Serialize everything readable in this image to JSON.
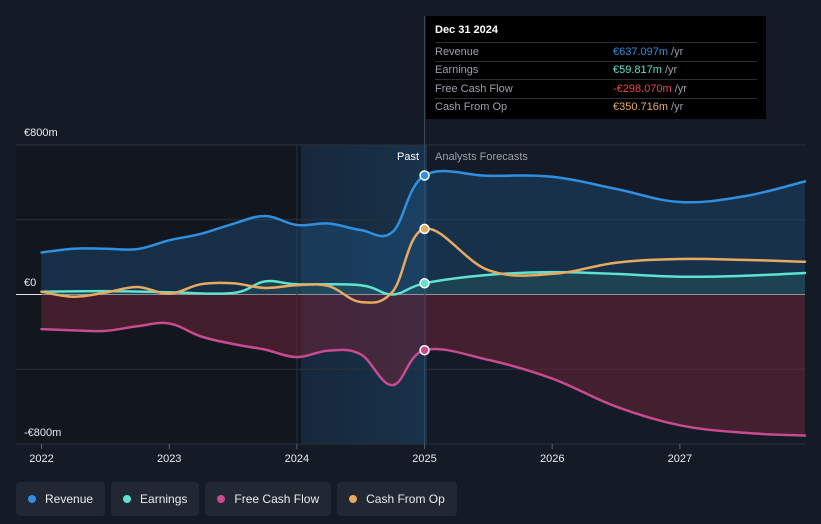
{
  "chart_data": {
    "type": "area",
    "currency_unit": "€m",
    "y_axis": {
      "top_label": "€800m",
      "zero_label": "€0",
      "bottom_label": "-€800m",
      "ylim": [
        -800,
        800
      ]
    },
    "x_axis": {
      "ticks": [
        "2022",
        "2023",
        "2024",
        "2025",
        "2026",
        "2027"
      ],
      "xlim": [
        2021.8,
        2027.98
      ]
    },
    "divider": {
      "past_label": "Past",
      "forecast_label": "Analysts Forecasts",
      "at": 2025.0,
      "highlight_from": 2024.0
    },
    "series": [
      {
        "name": "Revenue",
        "color": "#2f8fe0",
        "x": [
          2022.0,
          2022.25,
          2022.5,
          2022.75,
          2023.0,
          2023.25,
          2023.5,
          2023.75,
          2024.0,
          2024.25,
          2024.5,
          2024.75,
          2025.0,
          2025.5,
          2026.0,
          2026.5,
          2027.0,
          2027.5,
          2027.98
        ],
        "values": [
          225,
          245,
          245,
          243,
          290,
          325,
          378,
          420,
          372,
          380,
          345,
          335,
          637,
          635,
          630,
          565,
          495,
          525,
          605
        ]
      },
      {
        "name": "Earnings",
        "color": "#5ee3d0",
        "x": [
          2022.0,
          2022.5,
          2023.0,
          2023.5,
          2023.75,
          2024.0,
          2024.5,
          2024.75,
          2025.0,
          2025.5,
          2026.0,
          2026.5,
          2027.0,
          2027.5,
          2027.98
        ],
        "values": [
          15,
          18,
          12,
          8,
          70,
          55,
          50,
          0,
          60,
          105,
          120,
          110,
          95,
          100,
          115
        ]
      },
      {
        "name": "Free Cash Flow",
        "color": "#c94b8f",
        "x": [
          2022.0,
          2022.25,
          2022.5,
          2022.75,
          2023.0,
          2023.25,
          2023.5,
          2023.75,
          2024.0,
          2024.25,
          2024.5,
          2024.75,
          2025.0,
          2025.5,
          2026.0,
          2026.5,
          2027.0,
          2027.5,
          2027.98
        ],
        "values": [
          -185,
          -192,
          -195,
          -170,
          -155,
          -225,
          -265,
          -295,
          -335,
          -300,
          -320,
          -485,
          -298,
          -350,
          -450,
          -600,
          -700,
          -740,
          -755
        ]
      },
      {
        "name": "Cash From Op",
        "color": "#e8a960",
        "x": [
          2022.0,
          2022.25,
          2022.5,
          2022.75,
          2023.0,
          2023.25,
          2023.5,
          2023.75,
          2024.0,
          2024.25,
          2024.5,
          2024.75,
          2025.0,
          2025.5,
          2026.0,
          2026.5,
          2027.0,
          2027.5,
          2027.98
        ],
        "values": [
          15,
          -12,
          10,
          40,
          5,
          55,
          60,
          35,
          50,
          45,
          -40,
          15,
          351,
          130,
          110,
          170,
          190,
          185,
          175
        ]
      }
    ],
    "highlight_points": {
      "x": 2025.0,
      "values": [
        637,
        60,
        -298,
        351
      ]
    }
  },
  "tooltip": {
    "date": "Dec 31 2024",
    "rows": [
      {
        "label": "Revenue",
        "value": "€637.097m",
        "unit": "/yr",
        "color": "#2f8fe0"
      },
      {
        "label": "Earnings",
        "value": "€59.817m",
        "unit": "/yr",
        "color": "#5ee3d0"
      },
      {
        "label": "Free Cash Flow",
        "value": "-€298.070m",
        "unit": "/yr",
        "color": "#e84a4a"
      },
      {
        "label": "Cash From Op",
        "value": "€350.716m",
        "unit": "/yr",
        "color": "#e8a960"
      }
    ]
  },
  "legend": [
    {
      "label": "Revenue",
      "color": "#2f8fe0"
    },
    {
      "label": "Earnings",
      "color": "#5ee3d0"
    },
    {
      "label": "Free Cash Flow",
      "color": "#c94b8f"
    },
    {
      "label": "Cash From Op",
      "color": "#e8a960"
    }
  ]
}
